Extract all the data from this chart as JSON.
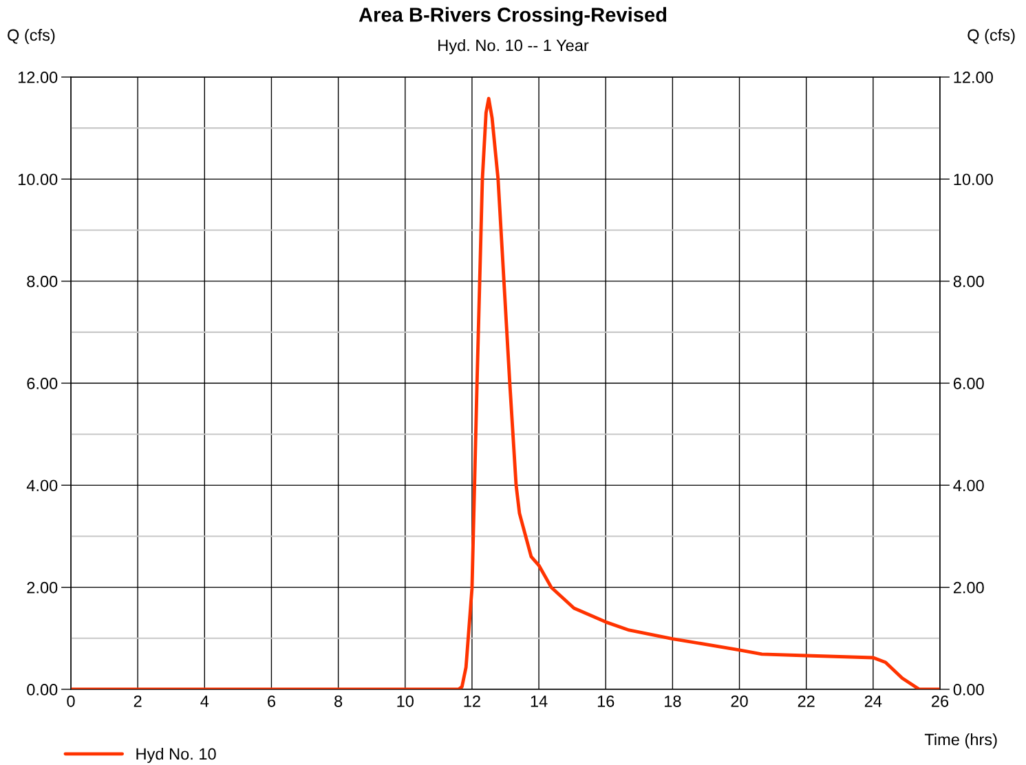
{
  "chart_data": {
    "type": "line",
    "title": "Area B-Rivers Crossing-Revised",
    "subtitle": "Hyd. No. 10 -- 1 Year",
    "xlabel": "Time (hrs)",
    "ylabel": "Q (cfs)",
    "y2label": "Q (cfs)",
    "series": [
      {
        "name": "Hyd No. 10",
        "color": "#ff3300",
        "x": [
          0,
          11.6,
          11.7,
          11.82,
          12.0,
          12.15,
          12.31,
          12.42,
          12.5,
          12.6,
          12.78,
          13.13,
          13.32,
          13.42,
          13.77,
          14.0,
          14.37,
          15.05,
          16.0,
          16.7,
          18.0,
          20.0,
          20.67,
          22.0,
          24.0,
          24.37,
          24.87,
          25.38,
          26.0
        ],
        "values": [
          0,
          0,
          0.05,
          0.43,
          1.98,
          6.0,
          10.0,
          11.3,
          11.58,
          11.2,
          10.0,
          6.0,
          4.0,
          3.45,
          2.6,
          2.43,
          2.0,
          1.59,
          1.32,
          1.16,
          0.99,
          0.77,
          0.69,
          0.66,
          0.62,
          0.53,
          0.22,
          0,
          0
        ]
      }
    ],
    "xlim": [
      0,
      26
    ],
    "xticks": [
      0,
      2,
      4,
      6,
      8,
      10,
      12,
      14,
      16,
      18,
      20,
      22,
      24,
      26
    ],
    "ylim": [
      0,
      12
    ],
    "yticks": [
      {
        "value": 0,
        "label": "0.00"
      },
      {
        "value": 1,
        "label": null
      },
      {
        "value": 2,
        "label": "2.00"
      },
      {
        "value": 3,
        "label": null
      },
      {
        "value": 4,
        "label": "4.00"
      },
      {
        "value": 5,
        "label": null
      },
      {
        "value": 6,
        "label": "6.00"
      },
      {
        "value": 7,
        "label": null
      },
      {
        "value": 8,
        "label": "8.00"
      },
      {
        "value": 9,
        "label": null
      },
      {
        "value": 10,
        "label": "10.00"
      },
      {
        "value": 11,
        "label": null
      },
      {
        "value": 12,
        "label": "12.00"
      }
    ],
    "y2lim": [
      0,
      12
    ],
    "y2ticks": [
      {
        "value": 0,
        "label": "0.00"
      },
      {
        "value": 2,
        "label": "2.00"
      },
      {
        "value": 4,
        "label": "4.00"
      },
      {
        "value": 6,
        "label": "6.00"
      },
      {
        "value": 8,
        "label": "8.00"
      },
      {
        "value": 10,
        "label": "10.00"
      },
      {
        "value": 12,
        "label": "12.00"
      }
    ],
    "grid": true,
    "legend": "bottom left",
    "marker": "none",
    "line_style": "solid"
  }
}
